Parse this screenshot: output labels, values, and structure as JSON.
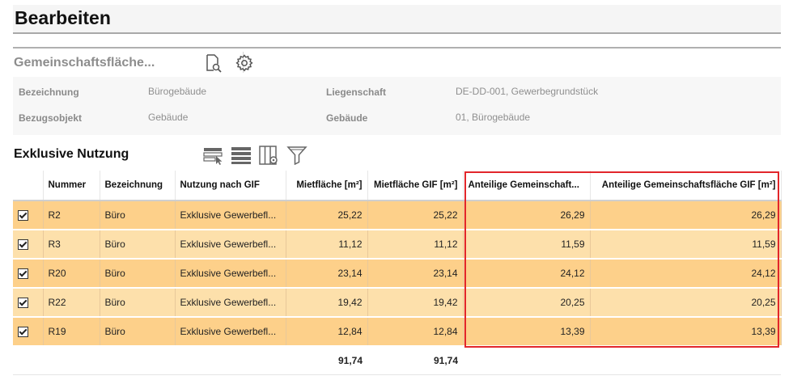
{
  "page": {
    "title": "Bearbeiten"
  },
  "section": {
    "title": "Gemeinschaftsfläche...",
    "icons": [
      "document-search-icon",
      "gear-icon"
    ]
  },
  "info": {
    "row1": {
      "label_left": "Bezeichnung",
      "value_left": "Bürogebäude",
      "label_right": "Liegenschaft",
      "value_right": "DE-DD-001, Gewerbegrundstück"
    },
    "row2": {
      "label_left": "Bezugsobjekt",
      "value_left": "Gebäude",
      "label_right": "Gebäude",
      "value_right": "01, Bürogebäude"
    }
  },
  "table": {
    "title": "Exklusive Nutzung",
    "toolbar_icons": [
      "select-rows-icon",
      "list-view-icon",
      "column-settings-icon",
      "filter-icon"
    ],
    "columns": [
      "",
      "Nummer",
      "Bezeichnung",
      "Nutzung nach GIF",
      "Mietfläche [m²]",
      "Mietfläche GIF [m²]",
      "Anteilige Gemeinschaft...",
      "Anteilige Gemeinschaftsfläche GIF [m²]"
    ],
    "rows": [
      {
        "checked": true,
        "nummer": "R2",
        "bezeichnung": "Büro",
        "nutzung": "Exklusive Gewerbefl...",
        "mietflaeche": "25,22",
        "mietflaeche_gif": "25,22",
        "anteilig": "26,29",
        "anteilig_gif": "26,29"
      },
      {
        "checked": true,
        "nummer": "R3",
        "bezeichnung": "Büro",
        "nutzung": "Exklusive Gewerbefl...",
        "mietflaeche": "11,12",
        "mietflaeche_gif": "11,12",
        "anteilig": "11,59",
        "anteilig_gif": "11,59"
      },
      {
        "checked": true,
        "nummer": "R20",
        "bezeichnung": "Büro",
        "nutzung": "Exklusive Gewerbefl...",
        "mietflaeche": "23,14",
        "mietflaeche_gif": "23,14",
        "anteilig": "24,12",
        "anteilig_gif": "24,12"
      },
      {
        "checked": true,
        "nummer": "R22",
        "bezeichnung": "Büro",
        "nutzung": "Exklusive Gewerbefl...",
        "mietflaeche": "19,42",
        "mietflaeche_gif": "19,42",
        "anteilig": "20,25",
        "anteilig_gif": "20,25"
      },
      {
        "checked": true,
        "nummer": "R19",
        "bezeichnung": "Büro",
        "nutzung": "Exklusive Gewerbefl...",
        "mietflaeche": "12,84",
        "mietflaeche_gif": "12,84",
        "anteilig": "13,39",
        "anteilig_gif": "13,39"
      }
    ],
    "totals": {
      "mietflaeche": "91,74",
      "mietflaeche_gif": "91,74"
    }
  },
  "colors": {
    "row_odd": "#fdd08a",
    "row_even": "#fde0ab",
    "highlight": "#e2262b",
    "label_gray": "#8a8a8a"
  }
}
